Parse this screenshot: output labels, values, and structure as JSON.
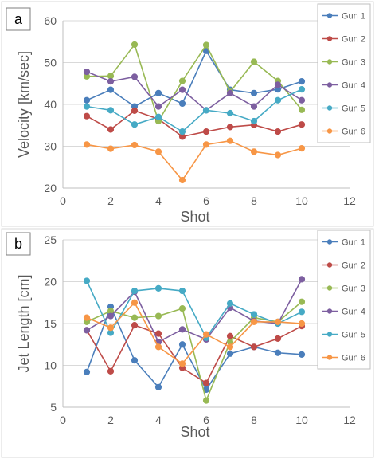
{
  "chart_data": [
    {
      "type": "line",
      "panel_label": "a",
      "xlabel": "Shot",
      "ylabel": "Velocity [km/sec]",
      "xlim": [
        0,
        12
      ],
      "ylim": [
        20,
        60
      ],
      "xticks": [
        "0",
        "2",
        "4",
        "6",
        "8",
        "10",
        "12"
      ],
      "yticks": [
        "20",
        "30",
        "40",
        "50",
        "60"
      ],
      "grid": true,
      "legend_position": "right",
      "x": [
        1,
        2,
        3,
        4,
        5,
        6,
        7,
        8,
        9,
        10
      ],
      "series": [
        {
          "name": "Gun 1",
          "color": "#4a7ebb",
          "values": [
            41.0,
            43.5,
            39.5,
            42.7,
            40.2,
            52.8,
            43.5,
            42.7,
            43.6,
            45.5
          ]
        },
        {
          "name": "Gun 2",
          "color": "#be4b48",
          "values": [
            37.2,
            34.0,
            38.5,
            36.5,
            32.3,
            33.5,
            34.6,
            35.1,
            33.5,
            35.2
          ]
        },
        {
          "name": "Gun 3",
          "color": "#98b954",
          "values": [
            46.7,
            46.8,
            54.3,
            36.0,
            45.6,
            54.2,
            43.0,
            50.2,
            45.6,
            38.7
          ]
        },
        {
          "name": "Gun 4",
          "color": "#7d5fa0",
          "values": [
            47.8,
            45.5,
            46.6,
            39.5,
            43.5,
            38.6,
            42.7,
            39.5,
            44.7,
            41.0
          ]
        },
        {
          "name": "Gun 5",
          "color": "#46aac5",
          "values": [
            39.5,
            38.6,
            35.2,
            37.0,
            33.5,
            38.6,
            37.9,
            36.0,
            41.0,
            43.6
          ]
        },
        {
          "name": "Gun 6",
          "color": "#f79646",
          "values": [
            30.4,
            29.4,
            30.3,
            28.7,
            21.9,
            30.4,
            31.3,
            28.7,
            27.9,
            29.5
          ]
        }
      ]
    },
    {
      "type": "line",
      "panel_label": "b",
      "xlabel": "Shot",
      "ylabel": "Jet Length [cm]",
      "xlim": [
        0,
        12
      ],
      "ylim": [
        5,
        25
      ],
      "xticks": [
        "0",
        "2",
        "4",
        "6",
        "8",
        "10",
        "12"
      ],
      "yticks": [
        "5",
        "10",
        "15",
        "20",
        "25"
      ],
      "grid": true,
      "legend_position": "right",
      "x": [
        1,
        2,
        3,
        4,
        5,
        6,
        7,
        8,
        9,
        10
      ],
      "series": [
        {
          "name": "Gun 1",
          "color": "#4a7ebb",
          "values": [
            9.2,
            17.0,
            10.6,
            7.4,
            12.5,
            7.1,
            11.4,
            12.2,
            11.5,
            11.3
          ]
        },
        {
          "name": "Gun 2",
          "color": "#be4b48",
          "values": [
            14.2,
            9.3,
            14.8,
            13.8,
            9.7,
            7.9,
            13.5,
            12.2,
            13.2,
            14.7
          ]
        },
        {
          "name": "Gun 3",
          "color": "#98b954",
          "values": [
            15.2,
            16.5,
            15.7,
            15.9,
            16.8,
            5.8,
            12.8,
            15.7,
            15.2,
            17.6
          ]
        },
        {
          "name": "Gun 4",
          "color": "#7d5fa0",
          "values": [
            14.2,
            15.9,
            18.8,
            12.8,
            14.3,
            13.1,
            16.9,
            15.3,
            15.0,
            20.3
          ]
        },
        {
          "name": "Gun 5",
          "color": "#46aac5",
          "values": [
            20.1,
            13.9,
            18.9,
            19.2,
            18.9,
            13.3,
            17.4,
            16.1,
            15.0,
            16.4
          ]
        },
        {
          "name": "Gun 6",
          "color": "#f79646",
          "values": [
            15.7,
            14.5,
            17.5,
            12.2,
            10.2,
            13.7,
            12.2,
            15.2,
            15.2,
            15.0
          ]
        }
      ]
    }
  ]
}
